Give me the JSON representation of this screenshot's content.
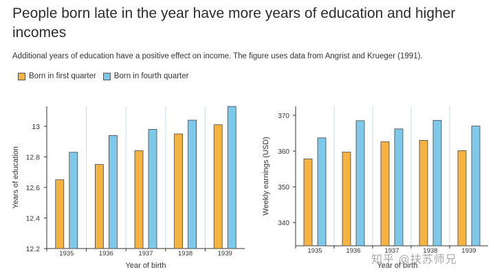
{
  "title": "People born late in the year have more years of education and higher incomes",
  "subtitle": "Additional years of education have a positive effect on income. The figure uses data from Angrist and Krueger (1991).",
  "legend": [
    {
      "label": "Born in first quarter",
      "color": "#f5b342"
    },
    {
      "label": "Born in fourth quarter",
      "color": "#7ec8ea"
    }
  ],
  "watermark": "知乎 @扶苏师兄",
  "chart_data": [
    {
      "type": "bar",
      "categories": [
        "1935",
        "1936",
        "1937",
        "1938",
        "1939"
      ],
      "series": [
        {
          "name": "Born in first quarter",
          "values": [
            12.65,
            12.75,
            12.84,
            12.95,
            13.01
          ]
        },
        {
          "name": "Born in fourth quarter",
          "values": [
            12.83,
            12.94,
            12.98,
            13.04,
            13.13
          ]
        }
      ],
      "ylim": [
        12.2,
        13.13
      ],
      "yticks": [
        12.2,
        12.4,
        12.6,
        12.8,
        13
      ],
      "ylabel": "Years of education",
      "xlabel": "Year of birth",
      "grid": "vertical"
    },
    {
      "type": "bar",
      "categories": [
        "1935",
        "1936",
        "1937",
        "1938",
        "1939"
      ],
      "series": [
        {
          "name": "Born in first quarter",
          "values": [
            357.8,
            359.7,
            362.6,
            363.0,
            360.1
          ]
        },
        {
          "name": "Born in fourth quarter",
          "values": [
            363.7,
            368.5,
            366.2,
            368.6,
            367.0
          ]
        }
      ],
      "ylim": [
        333.5,
        372.5
      ],
      "yticks": [
        340,
        350,
        360,
        370
      ],
      "ylabel": "Weekly earnings (USD)",
      "xlabel": "Year of birth",
      "grid": "vertical"
    }
  ]
}
